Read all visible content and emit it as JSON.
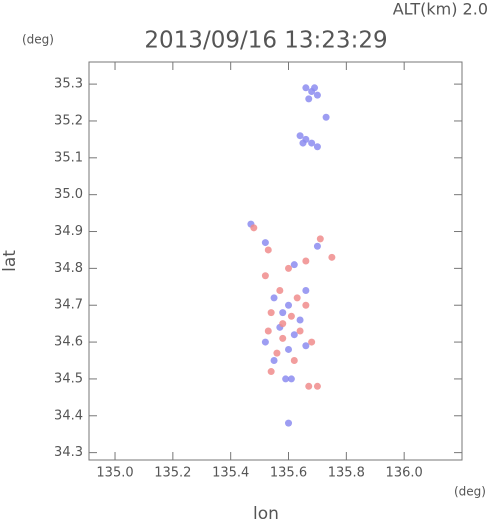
{
  "chart_data": {
    "type": "scatter",
    "title": "2013/09/16 13:23:29",
    "subtitle": "ALT(km) 2.0",
    "x_label": "lon",
    "y_label": "lat",
    "x_unit": "(deg)",
    "y_unit": "(deg)",
    "xlim": [
      134.91,
      136.2
    ],
    "ylim": [
      34.28,
      35.36
    ],
    "xticks": [
      {
        "value": 135,
        "label": "135.0"
      },
      135.2,
      135.4,
      135.6,
      135.8,
      {
        "value": 136,
        "label": "136.0"
      }
    ],
    "yticks": [
      34.3,
      34.4,
      34.5,
      34.6,
      34.7,
      34.8,
      34.9,
      {
        "value": 35,
        "label": "35.0"
      },
      35.1,
      35.2,
      35.3
    ],
    "series": [
      {
        "color": "#8c8cf0",
        "x": [
          135.66,
          135.68,
          135.67,
          135.7,
          135.69,
          135.73,
          135.64,
          135.66,
          135.65,
          135.68,
          135.7,
          135.47,
          135.52,
          135.62,
          135.7,
          135.55,
          135.6,
          135.64,
          135.57,
          135.62,
          135.52,
          135.6,
          135.66,
          135.55,
          135.59,
          135.61,
          135.6,
          135.66,
          135.58
        ],
        "y": [
          35.29,
          35.28,
          35.26,
          35.27,
          35.29,
          35.21,
          35.16,
          35.15,
          35.14,
          35.14,
          35.13,
          34.92,
          34.87,
          34.81,
          34.86,
          34.72,
          34.7,
          34.66,
          34.64,
          34.62,
          34.6,
          34.58,
          34.59,
          34.55,
          34.5,
          34.5,
          34.38,
          34.74,
          34.68
        ]
      },
      {
        "color": "#f08c8c",
        "x": [
          135.48,
          135.53,
          135.71,
          135.75,
          135.66,
          135.6,
          135.52,
          135.57,
          135.63,
          135.54,
          135.61,
          135.66,
          135.53,
          135.58,
          135.64,
          135.68,
          135.56,
          135.62,
          135.54,
          135.67,
          135.7,
          135.58
        ],
        "y": [
          34.91,
          34.85,
          34.88,
          34.83,
          34.82,
          34.8,
          34.78,
          34.74,
          34.72,
          34.68,
          34.67,
          34.7,
          34.63,
          34.61,
          34.63,
          34.6,
          34.57,
          34.55,
          34.52,
          34.48,
          34.48,
          34.65
        ]
      }
    ]
  }
}
